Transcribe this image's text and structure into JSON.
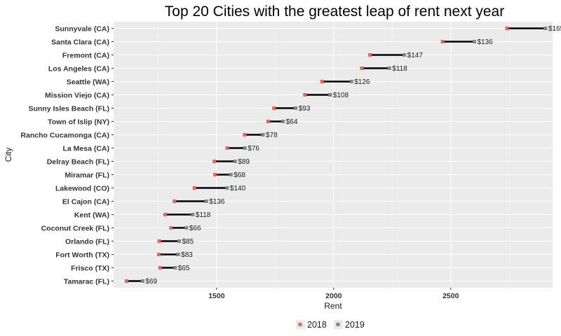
{
  "chart_data": {
    "type": "dumbbell",
    "title": "Top 20 Cities with the greatest leap of rent next year",
    "xlabel": "Rent",
    "ylabel": "City",
    "xticks": [
      1500,
      2000,
      2500
    ],
    "xlim": [
      1060,
      2935
    ],
    "grid": true,
    "legend_position": "bottom",
    "legend": [
      {
        "name": "2018",
        "color": "#e8665a"
      },
      {
        "name": "2019",
        "color": "#7f8a85"
      }
    ],
    "segment_color": "#000000",
    "rows": [
      {
        "city": "Sunnyvale (CA)",
        "rent_2018": 2740,
        "rent_2019": 2905,
        "label": "$165"
      },
      {
        "city": "Santa Clara (CA)",
        "rent_2018": 2465,
        "rent_2019": 2601,
        "label": "$136"
      },
      {
        "city": "Fremont (CA)",
        "rent_2018": 2155,
        "rent_2019": 2302,
        "label": "$147"
      },
      {
        "city": "Los Angeles (CA)",
        "rent_2018": 2120,
        "rent_2019": 2238,
        "label": "$118"
      },
      {
        "city": "Seattle (WA)",
        "rent_2018": 1950,
        "rent_2019": 2076,
        "label": "$126"
      },
      {
        "city": "Mission Viejo (CA)",
        "rent_2018": 1877,
        "rent_2019": 1985,
        "label": "$108"
      },
      {
        "city": "Sunny Isles Beach (FL)",
        "rent_2018": 1745,
        "rent_2019": 1838,
        "label": "$93"
      },
      {
        "city": "Town of Islip (NY)",
        "rent_2018": 1720,
        "rent_2019": 1784,
        "label": "$64"
      },
      {
        "city": "Rancho Cucamonga (CA)",
        "rent_2018": 1620,
        "rent_2019": 1698,
        "label": "$78"
      },
      {
        "city": "La Mesa (CA)",
        "rent_2018": 1545,
        "rent_2019": 1621,
        "label": "$76"
      },
      {
        "city": "Delray Beach (FL)",
        "rent_2018": 1490,
        "rent_2019": 1579,
        "label": "$89"
      },
      {
        "city": "Miramar (FL)",
        "rent_2018": 1493,
        "rent_2019": 1561,
        "label": "$68"
      },
      {
        "city": "Lakewood (CO)",
        "rent_2018": 1405,
        "rent_2019": 1545,
        "label": "$140"
      },
      {
        "city": "El Cajon (CA)",
        "rent_2018": 1320,
        "rent_2019": 1456,
        "label": "$136"
      },
      {
        "city": "Kent (WA)",
        "rent_2018": 1280,
        "rent_2019": 1398,
        "label": "$118"
      },
      {
        "city": "Coconut Creek (FL)",
        "rent_2018": 1305,
        "rent_2019": 1371,
        "label": "$66"
      },
      {
        "city": "Orlando (FL)",
        "rent_2018": 1255,
        "rent_2019": 1340,
        "label": "$85"
      },
      {
        "city": "Fort Worth (TX)",
        "rent_2018": 1253,
        "rent_2019": 1336,
        "label": "$83"
      },
      {
        "city": "Frisco (TX)",
        "rent_2018": 1258,
        "rent_2019": 1323,
        "label": "$65"
      },
      {
        "city": "Tamarac (FL)",
        "rent_2018": 1115,
        "rent_2019": 1184,
        "label": "$69"
      }
    ]
  }
}
